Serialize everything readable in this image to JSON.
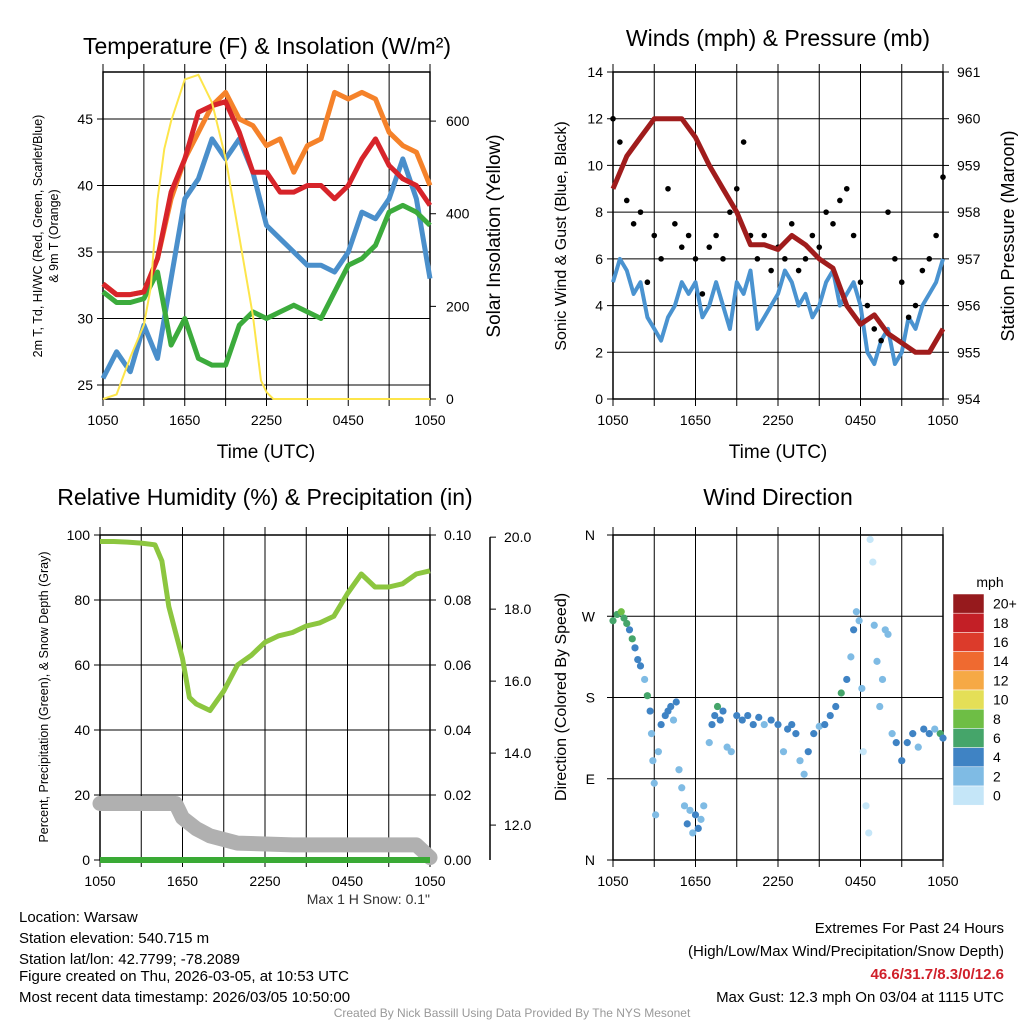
{
  "time_ticks": [
    "1050",
    "1650",
    "2250",
    "0450",
    "1050"
  ],
  "chart_data": [
    {
      "type": "line",
      "title": "Temperature (F) & Insolation (W/m²)",
      "xlabel": "Time (UTC)",
      "ylabel_line1": "2m T, Td, HI/WC (Red, Green, Scarlet/Blue)",
      "ylabel_line2": "& 9m T (Orange)",
      "y2label": "Solar Insolation (Yellow)",
      "ylim": [
        23.95,
        48.53
      ],
      "y_ticks": [
        25,
        30,
        35,
        40,
        45
      ],
      "y2lim": [
        0,
        706
      ],
      "y2_ticks": [
        0,
        200,
        400,
        600
      ],
      "hours": [
        0,
        1,
        2,
        3,
        4,
        5,
        6,
        7,
        8,
        9,
        10,
        11,
        12,
        13,
        14,
        15,
        16,
        17,
        18,
        19,
        20,
        21,
        22,
        23,
        24
      ],
      "series": [
        {
          "name": "9m T",
          "color": "#f5822a",
          "values": [
            32.6,
            31.8,
            31.8,
            32.0,
            34.5,
            39.0,
            42.0,
            44.0,
            46.0,
            47.0,
            45.0,
            44.5,
            43.0,
            43.5,
            41.0,
            43.0,
            43.5,
            47.0,
            46.5,
            47.0,
            46.5,
            44.0,
            43.0,
            42.5,
            40.0
          ]
        },
        {
          "name": "HI/WC",
          "color": "#4a8fcb",
          "values": [
            25.5,
            27.5,
            26.0,
            29.5,
            27.0,
            33.0,
            39.0,
            40.5,
            43.5,
            42.0,
            43.5,
            41.0,
            37.0,
            36.0,
            35.0,
            34.0,
            34.0,
            33.5,
            35.0,
            38.0,
            37.5,
            39.0,
            42.0,
            39.0,
            33.0
          ]
        },
        {
          "name": "2m Td",
          "color": "#3cab3c",
          "values": [
            32.0,
            31.2,
            31.2,
            31.5,
            33.5,
            28.0,
            30.0,
            27.0,
            26.5,
            26.5,
            29.5,
            30.5,
            30.0,
            30.5,
            31.0,
            30.5,
            30.0,
            32.0,
            34.0,
            34.5,
            35.5,
            38.0,
            38.5,
            38.0,
            37.0
          ]
        },
        {
          "name": "2m T",
          "color": "#d7242a",
          "values": [
            32.6,
            31.8,
            31.8,
            32.0,
            34.5,
            39.5,
            42.0,
            45.5,
            46.0,
            46.3,
            44.0,
            41.0,
            41.0,
            39.5,
            39.5,
            40.0,
            40.0,
            39.0,
            40.0,
            42.0,
            43.5,
            41.5,
            40.5,
            40.0,
            38.5
          ]
        }
      ],
      "insolation": {
        "name": "Solar Insolation",
        "color": "#fde54a",
        "hours": [
          0,
          1,
          2,
          3,
          3.5,
          4,
          4.5,
          5,
          6,
          7,
          8,
          9,
          10,
          11,
          11.6,
          12,
          12.5,
          24
        ],
        "values": [
          0,
          10,
          90,
          160,
          240,
          430,
          540,
          600,
          690,
          700,
          640,
          520,
          350,
          180,
          40,
          15,
          0,
          0
        ]
      }
    },
    {
      "type": "line",
      "title": "Winds (mph) & Pressure (mb)",
      "xlabel": "Time (UTC)",
      "ylabel": "Sonic Wind & Gust (Blue, Black)",
      "y2label": "Station Pressure (Maroon)",
      "ylim": [
        0,
        14
      ],
      "y_ticks": [
        0,
        2,
        4,
        6,
        8,
        10,
        12,
        14
      ],
      "y2lim": [
        954,
        961
      ],
      "y2_ticks": [
        954,
        955,
        956,
        957,
        958,
        959,
        960,
        961
      ],
      "wind": {
        "name": "Sonic Wind",
        "color": "#4a93d0",
        "hours": [
          0,
          0.5,
          1,
          1.5,
          2,
          2.5,
          3,
          3.5,
          4,
          4.5,
          5,
          5.5,
          6,
          6.5,
          7,
          7.5,
          8,
          8.5,
          9,
          9.5,
          10,
          10.5,
          11,
          11.5,
          12,
          12.5,
          13,
          13.5,
          14,
          14.5,
          15,
          15.5,
          16,
          16.5,
          17,
          17.5,
          18,
          18.5,
          19,
          19.5,
          20,
          20.5,
          21,
          21.5,
          22,
          22.5,
          23,
          23.5,
          24
        ],
        "values": [
          5,
          6,
          5.5,
          4.5,
          5,
          3.5,
          3,
          2.5,
          3.5,
          4,
          5,
          4.5,
          5,
          3.5,
          4,
          5,
          4,
          3,
          5,
          4.5,
          5.5,
          3,
          3.5,
          4,
          4.5,
          5.5,
          5,
          4,
          4.5,
          3.5,
          4,
          5,
          5.5,
          4,
          4.5,
          5,
          4,
          2,
          1.5,
          2.5,
          3,
          1.5,
          2,
          3.5,
          3,
          4,
          4.5,
          5,
          6
        ]
      },
      "gust": {
        "name": "Gust",
        "color": "#000000",
        "values": [
          12,
          11,
          8.5,
          7.5,
          8,
          5,
          7,
          6,
          9,
          7.5,
          6.5,
          7,
          6,
          4.5,
          6.5,
          7,
          6,
          8,
          9,
          11,
          7,
          6,
          7,
          5.5,
          6.5,
          6,
          7.5,
          5.5,
          6,
          7,
          6.5,
          8,
          7.5,
          8.5,
          9,
          7,
          5,
          4,
          3,
          2.5,
          8,
          6,
          5,
          3.5,
          4,
          5.5,
          6,
          7,
          9.5
        ]
      },
      "pressure": {
        "name": "Station Pressure",
        "color": "#a01c1c",
        "hours": [
          0,
          1,
          2,
          3,
          4,
          5,
          6,
          7,
          8,
          9,
          10,
          11,
          12,
          13,
          14,
          15,
          16,
          17,
          18,
          19,
          20,
          21,
          22,
          23,
          24
        ],
        "values": [
          958.5,
          959.2,
          959.6,
          960.0,
          960.0,
          960.0,
          959.6,
          959.0,
          958.5,
          958.0,
          957.3,
          957.3,
          957.2,
          957.5,
          957.3,
          957.0,
          956.8,
          956.0,
          955.6,
          955.8,
          955.4,
          955.2,
          955.0,
          955.0,
          955.5
        ]
      }
    },
    {
      "type": "line",
      "title": "Relative Humidity (%) & Precipitation (in)",
      "ylabel": "Percent, Precipitation (Green), & Snow Depth (Gray)",
      "ylim": [
        0,
        100
      ],
      "y_ticks": [
        0,
        20,
        40,
        60,
        80,
        100
      ],
      "y2lim": [
        0,
        0.1
      ],
      "y2_ticks": [
        "0.00",
        "0.02",
        "0.04",
        "0.06",
        "0.08",
        "0.10"
      ],
      "y3lim": [
        11.03,
        20.06
      ],
      "y3_ticks": [
        "12.0",
        "14.0",
        "16.0",
        "18.0",
        "20.0"
      ],
      "note": "Max 1 H Snow: 0.1\"",
      "rh": {
        "name": "Relative Humidity",
        "color": "#8cc63f",
        "hours": [
          0,
          1,
          2,
          3,
          4,
          4.5,
          5,
          5.5,
          6,
          6.5,
          7,
          8,
          9,
          10,
          11,
          12,
          13,
          14,
          15,
          16,
          17,
          18,
          19,
          20,
          21,
          22,
          23,
          24
        ],
        "values": [
          98,
          98,
          97.8,
          97.5,
          97,
          92,
          78,
          70,
          62,
          50,
          48,
          46,
          52,
          60,
          63,
          67,
          69,
          70,
          72,
          73,
          75,
          82,
          88,
          84,
          84,
          85,
          88,
          89
        ]
      },
      "snow_depth": {
        "name": "Snow Depth",
        "color": "#b0b0b0",
        "hours": [
          0,
          5.5,
          6,
          7,
          8,
          10,
          14,
          20,
          23,
          24
        ],
        "values": [
          12.6,
          12.6,
          12.2,
          11.9,
          11.7,
          11.5,
          11.45,
          11.45,
          11.45,
          11.1
        ]
      },
      "precip": {
        "name": "Precipitation",
        "color": "#3aaa35",
        "hours": [
          0,
          24
        ],
        "values": [
          0,
          0
        ]
      }
    },
    {
      "type": "scatter",
      "title": "Wind Direction",
      "ylabel": "Direction (Colored By Speed)",
      "y_ticks": [
        "N",
        "E",
        "S",
        "W",
        "N"
      ],
      "ylim": [
        0,
        360
      ],
      "colorbar_title": "mph",
      "colorbar": [
        {
          "label": "0",
          "color": "#c5e6f8"
        },
        {
          "label": "2",
          "color": "#7fbbe4"
        },
        {
          "label": "4",
          "color": "#3f83c4"
        },
        {
          "label": "6",
          "color": "#45a56a"
        },
        {
          "label": "8",
          "color": "#6ebe45"
        },
        {
          "label": "10",
          "color": "#e4df57"
        },
        {
          "label": "12",
          "color": "#f6a945"
        },
        {
          "label": "14",
          "color": "#ef6a30"
        },
        {
          "label": "16",
          "color": "#dc3b2b"
        },
        {
          "label": "18",
          "color": "#c31f26"
        },
        {
          "label": "20+",
          "color": "#961a1d"
        }
      ],
      "points": [
        [
          0,
          265,
          6
        ],
        [
          0.3,
          272,
          7
        ],
        [
          0.6,
          275,
          8
        ],
        [
          0.8,
          268,
          6
        ],
        [
          1,
          262,
          6
        ],
        [
          1.2,
          255,
          5
        ],
        [
          1.4,
          245,
          6
        ],
        [
          1.6,
          235,
          5
        ],
        [
          1.8,
          222,
          4
        ],
        [
          2,
          215,
          5
        ],
        [
          2.3,
          200,
          3
        ],
        [
          2.5,
          182,
          6
        ],
        [
          2.7,
          165,
          4
        ],
        [
          2.8,
          140,
          3
        ],
        [
          2.9,
          110,
          2
        ],
        [
          3.0,
          85,
          3
        ],
        [
          3.1,
          50,
          3
        ],
        [
          3.3,
          120,
          3
        ],
        [
          3.5,
          150,
          4
        ],
        [
          3.8,
          160,
          5
        ],
        [
          4.0,
          165,
          4
        ],
        [
          4.2,
          170,
          5
        ],
        [
          4.4,
          155,
          3
        ],
        [
          4.6,
          175,
          4
        ],
        [
          4.8,
          100,
          3
        ],
        [
          5.0,
          80,
          2
        ],
        [
          5.2,
          60,
          3
        ],
        [
          5.4,
          40,
          4
        ],
        [
          5.6,
          55,
          3
        ],
        [
          5.8,
          30,
          3
        ],
        [
          6,
          50,
          4
        ],
        [
          6.2,
          35,
          4
        ],
        [
          6.4,
          45,
          3
        ],
        [
          6.6,
          60,
          3
        ],
        [
          7,
          130,
          3
        ],
        [
          7.2,
          150,
          4
        ],
        [
          7.4,
          160,
          5
        ],
        [
          7.6,
          170,
          6
        ],
        [
          7.8,
          155,
          4
        ],
        [
          8,
          165,
          4
        ],
        [
          8.3,
          125,
          2
        ],
        [
          8.6,
          120,
          3
        ],
        [
          9,
          160,
          4
        ],
        [
          9.4,
          155,
          4
        ],
        [
          9.8,
          160,
          5
        ],
        [
          10.2,
          150,
          4
        ],
        [
          10.6,
          158,
          4
        ],
        [
          11,
          150,
          3
        ],
        [
          11.5,
          155,
          4
        ],
        [
          12,
          150,
          4
        ],
        [
          12.4,
          120,
          2
        ],
        [
          12.7,
          145,
          4
        ],
        [
          13,
          150,
          5
        ],
        [
          13.3,
          140,
          4
        ],
        [
          13.6,
          110,
          3
        ],
        [
          13.9,
          95,
          3
        ],
        [
          14.2,
          120,
          4
        ],
        [
          14.6,
          140,
          4
        ],
        [
          15,
          148,
          3
        ],
        [
          15.4,
          150,
          4
        ],
        [
          15.8,
          160,
          5
        ],
        [
          16.2,
          170,
          5
        ],
        [
          16.6,
          185,
          6
        ],
        [
          17,
          200,
          4
        ],
        [
          17.3,
          225,
          3
        ],
        [
          17.5,
          255,
          4
        ],
        [
          17.7,
          275,
          3
        ],
        [
          17.9,
          265,
          3
        ],
        [
          18.1,
          190,
          2
        ],
        [
          18.2,
          120,
          1
        ],
        [
          18.4,
          60,
          1
        ],
        [
          18.6,
          30,
          1
        ],
        [
          18.7,
          355,
          1
        ],
        [
          18.9,
          330,
          1
        ],
        [
          19.0,
          260,
          2
        ],
        [
          19.2,
          220,
          2
        ],
        [
          19.4,
          170,
          2
        ],
        [
          19.6,
          200,
          3
        ],
        [
          19.8,
          255,
          3
        ],
        [
          20,
          250,
          3
        ],
        [
          20.3,
          140,
          3
        ],
        [
          20.6,
          130,
          4
        ],
        [
          21,
          110,
          4
        ],
        [
          21.4,
          130,
          4
        ],
        [
          21.8,
          140,
          4
        ],
        [
          22.2,
          125,
          3
        ],
        [
          22.6,
          145,
          4
        ],
        [
          23,
          140,
          4
        ],
        [
          23.4,
          145,
          3
        ],
        [
          23.8,
          140,
          6
        ],
        [
          24,
          135,
          5
        ]
      ]
    }
  ],
  "footer": {
    "location": "Location: Warsaw",
    "elevation": "Station elevation: 540.715 m",
    "latlon": "Station lat/lon: 42.7799; -78.2089",
    "created": "Figure created on Thu, 2026-03-05, at 10:53 UTC",
    "recent": "Most recent data timestamp: 2026/03/05 10:50:00",
    "extremes_title": "Extremes For Past 24 Hours",
    "extremes_sub": "(High/Low/Max Wind/Precipitation/Snow Depth)",
    "extremes_values": "46.6/31.7/8.3/0/12.6",
    "max_gust": "Max Gust: 12.3 mph On 03/04 at 1115 UTC",
    "credit": "Created By Nick Bassill Using Data Provided By The NYS Mesonet"
  }
}
